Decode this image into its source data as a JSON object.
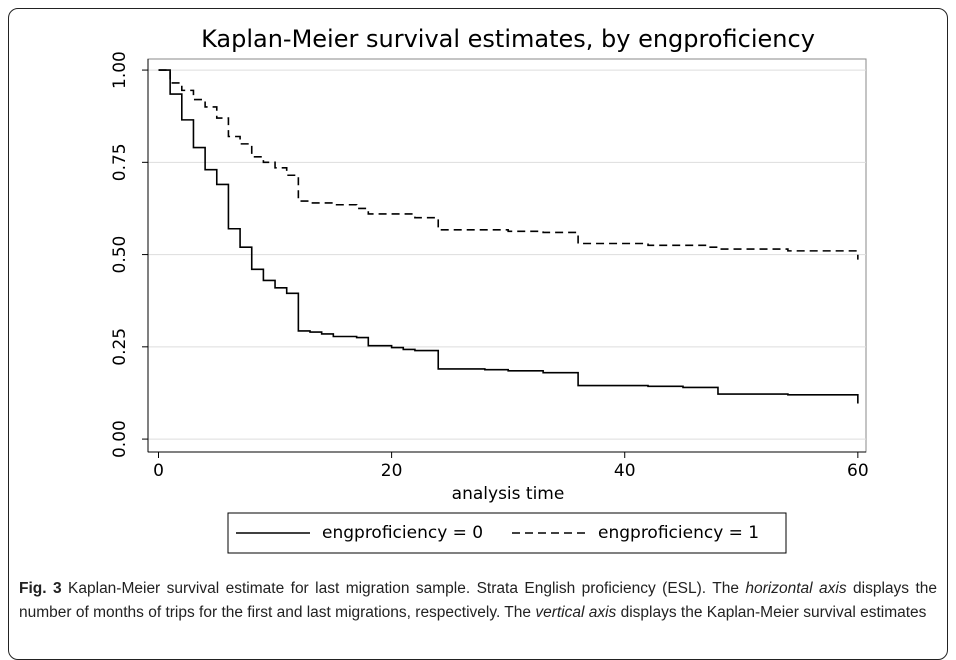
{
  "chart_data": {
    "type": "step",
    "title": "Kaplan-Meier survival estimates, by engproficiency",
    "xlabel": "analysis time",
    "xlim": [
      -0.9,
      60.7
    ],
    "xticks": [
      0,
      20,
      40,
      60
    ],
    "ylim": [
      -0.035,
      1.03
    ],
    "yticks": [
      {
        "value": 0,
        "label": "0.00"
      },
      {
        "value": 0.25,
        "label": "0.25"
      },
      {
        "value": 0.5,
        "label": "0.50"
      },
      {
        "value": 0.75,
        "label": "0.75"
      },
      {
        "value": 1,
        "label": "1.00"
      }
    ],
    "grid": true,
    "legend": "bottom",
    "series": [
      {
        "name": "engproficiency = 0",
        "color": "#000000",
        "dashed": false,
        "x": [
          0,
          1,
          2,
          3,
          4,
          5,
          6,
          7,
          8,
          9,
          10,
          11,
          12,
          13,
          14,
          15,
          17,
          18,
          20,
          21,
          22,
          24,
          28,
          30,
          33,
          36,
          42,
          45,
          48,
          54,
          60
        ],
        "values": [
          1.0,
          0.935,
          0.865,
          0.79,
          0.73,
          0.69,
          0.57,
          0.52,
          0.46,
          0.43,
          0.41,
          0.395,
          0.293,
          0.29,
          0.285,
          0.278,
          0.275,
          0.253,
          0.248,
          0.243,
          0.24,
          0.19,
          0.188,
          0.185,
          0.18,
          0.145,
          0.143,
          0.14,
          0.122,
          0.12,
          0.11
        ]
      },
      {
        "name": "engproficiency = 1",
        "color": "#000000",
        "dashed": true,
        "x": [
          0,
          1,
          2,
          3,
          4,
          5,
          6,
          7,
          8,
          9,
          10,
          11,
          12,
          13,
          15,
          17,
          18,
          22,
          24,
          30,
          33,
          36,
          42,
          47,
          48,
          54,
          60
        ],
        "values": [
          1.0,
          0.965,
          0.945,
          0.92,
          0.9,
          0.87,
          0.82,
          0.8,
          0.765,
          0.75,
          0.735,
          0.715,
          0.645,
          0.64,
          0.635,
          0.625,
          0.61,
          0.6,
          0.567,
          0.563,
          0.56,
          0.53,
          0.525,
          0.52,
          0.515,
          0.51,
          0.5
        ]
      }
    ]
  },
  "caption": {
    "label": "Fig. 3",
    "parts": [
      {
        "text": " Kaplan-Meier survival estimate for last migration sample. Strata English proficiency (ESL). The ",
        "italic": false
      },
      {
        "text": "horizontal axis",
        "italic": true
      },
      {
        "text": " displays the number of months of trips for the first and last migrations, respectively. The ",
        "italic": false
      },
      {
        "text": "vertical axis",
        "italic": true
      },
      {
        "text": " displays the Kaplan-Meier survival estimates",
        "italic": false
      }
    ]
  }
}
